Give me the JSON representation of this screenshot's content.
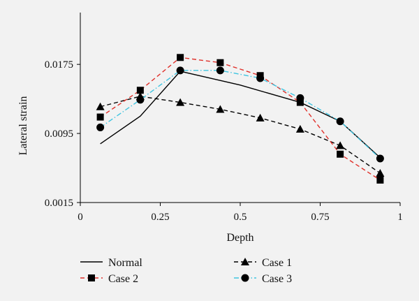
{
  "chart_data": {
    "type": "line",
    "title": "",
    "xlabel": "Depth",
    "ylabel": "Lateral strain",
    "xlim": [
      0,
      1
    ],
    "ylim": [
      0.0015,
      0.0235
    ],
    "x_ticks": [
      0,
      0.25,
      0.5,
      0.75,
      1
    ],
    "x_tick_labels": [
      "0",
      "0.25",
      "0.5",
      "0.75",
      "1"
    ],
    "y_ticks": [
      0.0015,
      0.0095,
      0.0175
    ],
    "y_tick_labels": [
      "0.0015",
      "0.0095",
      "0.0175"
    ],
    "grid": false,
    "legend_position": "bottom",
    "series": [
      {
        "name": "Normal",
        "color": "#000000",
        "dash": "solid",
        "marker": "none",
        "x": [
          0.0625,
          0.1875,
          0.3125,
          0.5,
          0.6875,
          0.8125,
          0.9375
        ],
        "y": [
          0.0083,
          0.0115,
          0.0167,
          0.0151,
          0.0131,
          0.0109,
          0.0067
        ]
      },
      {
        "name": "Case 1",
        "color": "#000000",
        "dash": "dashed",
        "marker": "triangle",
        "x": [
          0.0625,
          0.1875,
          0.3125,
          0.4375,
          0.5625,
          0.6875,
          0.8125,
          0.9375
        ],
        "y": [
          0.0126,
          0.0138,
          0.0131,
          0.0123,
          0.0113,
          0.01,
          0.0081,
          0.0049
        ]
      },
      {
        "name": "Case 2",
        "color": "#e0302a",
        "dash": "dashed",
        "marker": "square",
        "x": [
          0.0625,
          0.1875,
          0.3125,
          0.4375,
          0.5625,
          0.6875,
          0.8125,
          0.9375
        ],
        "y": [
          0.0114,
          0.0145,
          0.0183,
          0.0177,
          0.0162,
          0.0131,
          0.0071,
          0.0041
        ]
      },
      {
        "name": "Case 3",
        "color": "#3ec4e0",
        "dash": "dashdot",
        "marker": "circle",
        "x": [
          0.0625,
          0.1875,
          0.3125,
          0.4375,
          0.5625,
          0.6875,
          0.8125,
          0.9375
        ],
        "y": [
          0.0102,
          0.0134,
          0.0168,
          0.0168,
          0.0159,
          0.0136,
          0.0109,
          0.0066
        ]
      }
    ],
    "legend": [
      {
        "series": "Normal"
      },
      {
        "series": "Case 1"
      },
      {
        "series": "Case 2"
      },
      {
        "series": "Case 3"
      }
    ]
  }
}
